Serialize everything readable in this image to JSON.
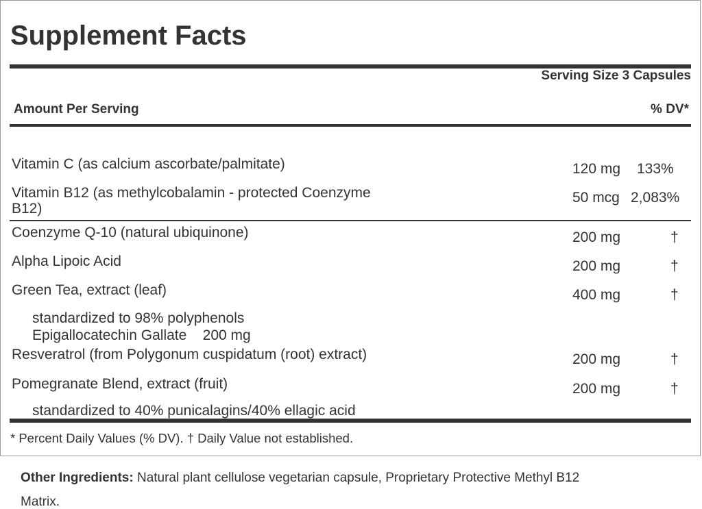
{
  "title": "Supplement Facts",
  "serving_size": "Serving Size 3 Capsules",
  "amount_per_serving": "Amount Per Serving",
  "dv_header": "% DV*",
  "rows": [
    {
      "name": "Vitamin C (as calcium ascorbate/palmitate)",
      "amount": "120 mg",
      "dv": "133%"
    },
    {
      "name": "Vitamin B12 (as methylcobalamin - protected Coenzyme",
      "name_line2": "B12)",
      "amount": "50 mcg",
      "dv": "2,083%"
    },
    {
      "name": "Coenzyme Q-10 (natural ubiquinone)",
      "amount": "200 mg",
      "dv": "†"
    },
    {
      "name": "Alpha Lipoic Acid",
      "amount": "200 mg",
      "dv": "†"
    },
    {
      "name": "Green Tea, extract (leaf)",
      "amount": "400 mg",
      "dv": "†",
      "sub": [
        "standardized to 98% polyphenols",
        "Epigallocatechin Gallate    200 mg"
      ]
    },
    {
      "name": "Resveratrol (from Polygonum cuspidatum (root) extract)",
      "amount": "200 mg",
      "dv": "†"
    },
    {
      "name": "Pomegranate Blend, extract (fruit)",
      "amount": "200 mg",
      "dv": "†",
      "sub": [
        "standardized to 40% punicalagins/40% ellagic acid"
      ]
    }
  ],
  "footnote": "* Percent Daily Values (% DV). † Daily Value not established.",
  "other_ingredients": {
    "label": "Other Ingredients:",
    "text": " Natural plant cellulose vegetarian capsule, Proprietary Protective Methyl B12",
    "text_line2": "Matrix."
  }
}
